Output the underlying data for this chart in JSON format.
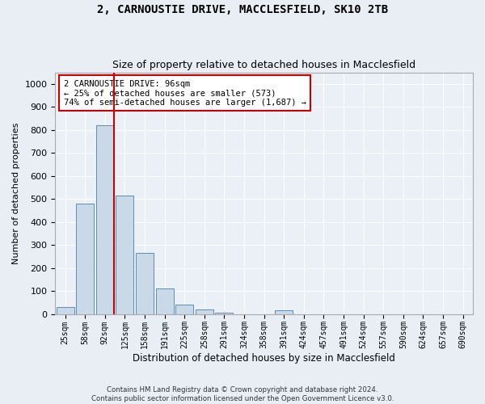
{
  "title": "2, CARNOUSTIE DRIVE, MACCLESFIELD, SK10 2TB",
  "subtitle": "Size of property relative to detached houses in Macclesfield",
  "xlabel": "Distribution of detached houses by size in Macclesfield",
  "ylabel": "Number of detached properties",
  "footer_line1": "Contains HM Land Registry data © Crown copyright and database right 2024.",
  "footer_line2": "Contains public sector information licensed under the Open Government Licence v3.0.",
  "bar_labels": [
    "25sqm",
    "58sqm",
    "92sqm",
    "125sqm",
    "158sqm",
    "191sqm",
    "225sqm",
    "258sqm",
    "291sqm",
    "324sqm",
    "358sqm",
    "391sqm",
    "424sqm",
    "457sqm",
    "491sqm",
    "524sqm",
    "557sqm",
    "590sqm",
    "624sqm",
    "657sqm",
    "690sqm"
  ],
  "bar_values": [
    30,
    478,
    820,
    515,
    265,
    110,
    40,
    18,
    5,
    0,
    0,
    15,
    0,
    0,
    0,
    0,
    0,
    0,
    0,
    0,
    0
  ],
  "bar_color": "#c9d9e8",
  "bar_edge_color": "#5b8db8",
  "property_label": "2 CARNOUSTIE DRIVE: 96sqm",
  "annotation_line1": "← 25% of detached houses are smaller (573)",
  "annotation_line2": "74% of semi-detached houses are larger (1,687) →",
  "vline_x_index": 2,
  "vline_color": "#cc0000",
  "annotation_box_color": "#cc0000",
  "ylim": [
    0,
    1050
  ],
  "yticks": [
    0,
    100,
    200,
    300,
    400,
    500,
    600,
    700,
    800,
    900,
    1000
  ],
  "bg_color": "#e8eef4",
  "plot_bg_color": "#eaf0f6",
  "title_fontsize": 10,
  "subtitle_fontsize": 9
}
